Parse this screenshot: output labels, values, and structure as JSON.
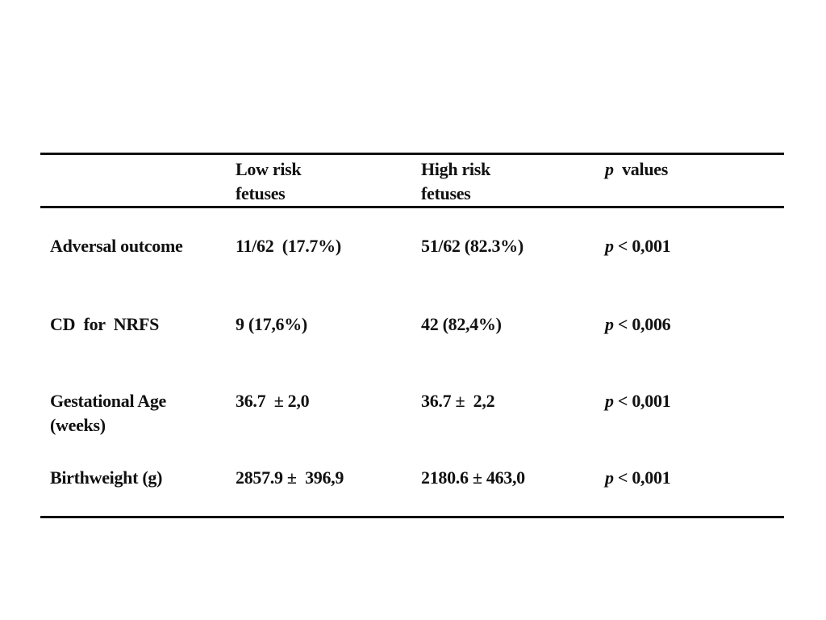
{
  "table": {
    "header": [
      [
        "Low risk",
        "fetuses"
      ],
      [
        "High risk",
        "fetuses"
      ],
      [
        "p  values"
      ]
    ],
    "rows": [
      {
        "label": [
          "Adversal outcome"
        ],
        "cells": [
          "11/62  (17.7%)",
          "51/62 (82.3%)",
          "p < 0,001"
        ]
      },
      {
        "label": [
          "CD  for  NRFS"
        ],
        "cells": [
          "9 (17,6%)",
          "42 (82,4%)",
          "p < 0,006"
        ]
      },
      {
        "label": [
          "Gestational Age",
          "(weeks)"
        ],
        "cells": [
          "36.7  ± 2,0",
          "36.7 ±  2,2",
          "p < 0,001"
        ]
      },
      {
        "label": [
          "Birthweight (g)"
        ],
        "cells": [
          "2857.9 ±  396,9",
          "2180.6 ± 463,0",
          "p < 0,001"
        ]
      }
    ]
  }
}
